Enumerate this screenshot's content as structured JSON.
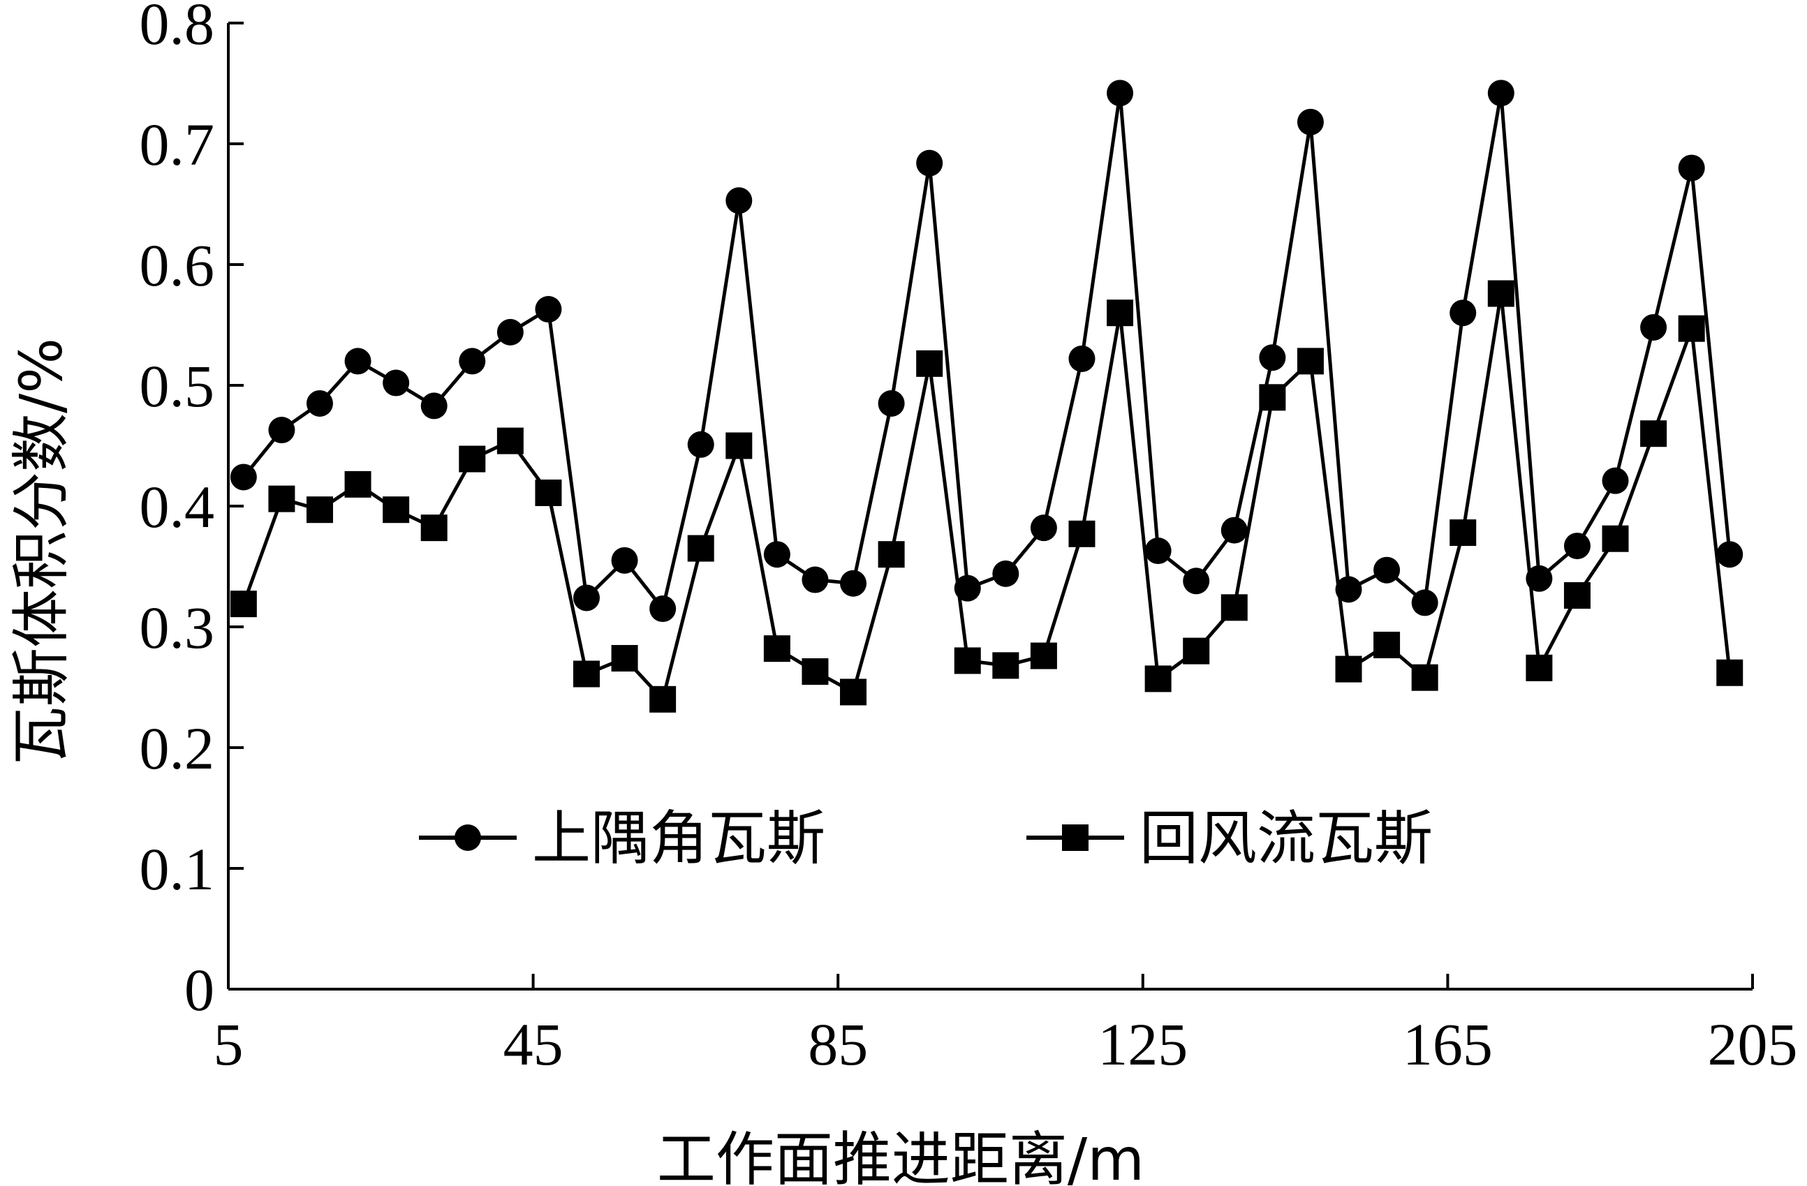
{
  "chart_data": {
    "type": "line",
    "xlabel": "工作面推进距离/m",
    "ylabel": "瓦斯体积分数/%",
    "xlim": [
      5,
      205
    ],
    "ylim": [
      0,
      0.8
    ],
    "xticks": [
      "5",
      "45",
      "85",
      "125",
      "165",
      "205"
    ],
    "yticks": [
      "0",
      "0.1",
      "0.2",
      "0.3",
      "0.4",
      "0.5",
      "0.6",
      "0.7",
      "0.8"
    ],
    "grid": false,
    "legend_position": "bottom-center",
    "x": [
      7,
      12,
      17,
      22,
      27,
      32,
      37,
      42,
      47,
      52,
      57,
      62,
      67,
      72,
      77,
      82,
      87,
      92,
      97,
      102,
      107,
      112,
      117,
      122,
      127,
      132,
      137,
      142,
      147,
      152,
      157,
      162,
      167,
      172,
      177,
      182,
      187,
      192,
      197,
      202
    ],
    "series": [
      {
        "name": "上隅角瓦斯",
        "marker": "circle",
        "color": "#000000",
        "values": [
          0.424,
          0.463,
          0.485,
          0.52,
          0.502,
          0.483,
          0.52,
          0.544,
          0.563,
          0.324,
          0.355,
          0.315,
          0.451,
          0.653,
          0.36,
          0.339,
          0.336,
          0.485,
          0.684,
          0.332,
          0.344,
          0.382,
          0.522,
          0.742,
          0.363,
          0.338,
          0.38,
          0.523,
          0.718,
          0.331,
          0.347,
          0.32,
          0.56,
          0.742,
          0.34,
          0.367,
          0.421,
          0.548,
          0.68,
          0.36
        ]
      },
      {
        "name": "回风流瓦斯",
        "marker": "square",
        "color": "#000000",
        "values": [
          0.319,
          0.406,
          0.397,
          0.418,
          0.397,
          0.382,
          0.439,
          0.454,
          0.411,
          0.261,
          0.274,
          0.24,
          0.365,
          0.45,
          0.282,
          0.263,
          0.246,
          0.36,
          0.518,
          0.272,
          0.268,
          0.276,
          0.377,
          0.56,
          0.257,
          0.28,
          0.316,
          0.49,
          0.52,
          0.265,
          0.285,
          0.258,
          0.378,
          0.576,
          0.266,
          0.326,
          0.373,
          0.46,
          0.547,
          0.262
        ]
      }
    ]
  }
}
